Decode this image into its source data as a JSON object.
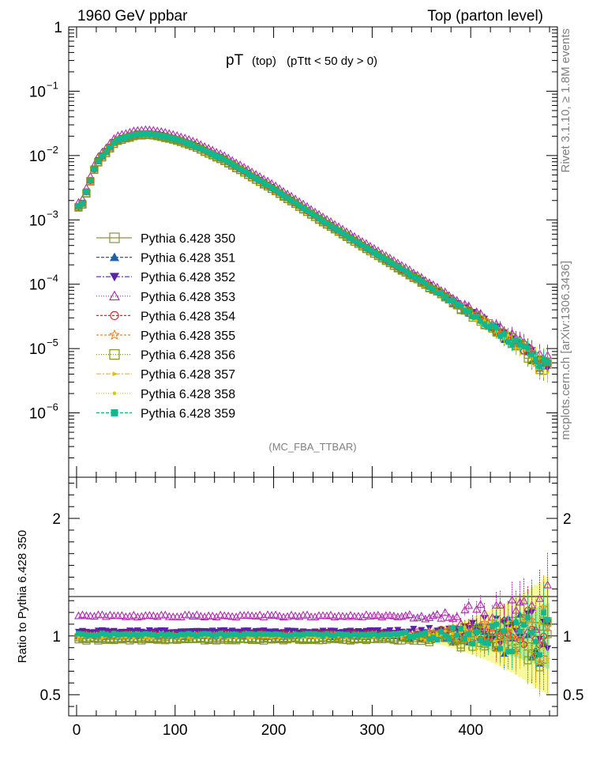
{
  "header": {
    "energy": "1960 GeV ppbar",
    "process": "Top (parton level)"
  },
  "title": {
    "main": "pT",
    "paren": "(top)",
    "cut": "(pTtt < 50 dy > 0)"
  },
  "side_label_top": "Rivet 3.1.10, ≥ 1.8M events",
  "side_label_bottom": "mcplots.cern.ch [arXiv:1306.3436]",
  "analysis_tag": "(MC_FBA_TTBAR)",
  "ratio_ylabel": "Ratio to Pythia 6.428 350",
  "chart_data": [
    {
      "type": "scatter",
      "yscale": "log",
      "xlim": [
        -8,
        488
      ],
      "ylim": [
        1e-07,
        1
      ],
      "ytick_labels": [
        "1",
        "10−1",
        "10−2",
        "10−3",
        "10−4",
        "10−5",
        "10−6"
      ],
      "xtick_labels": [
        "0",
        "100",
        "200",
        "300",
        "400"
      ],
      "x": [
        5,
        20,
        40,
        60,
        70,
        80,
        100,
        120,
        150,
        200,
        250,
        300,
        350,
        400,
        450,
        475
      ],
      "reference_values": [
        0.0016,
        0.0075,
        0.017,
        0.021,
        0.0215,
        0.021,
        0.018,
        0.014,
        0.0085,
        0.003,
        0.00095,
        0.00032,
        0.00011,
        3.5e-05,
        1.1e-05,
        5.5e-06
      ],
      "legend_position": "middle-left",
      "series": [
        {
          "name": "Pythia 6.428 350",
          "color": "#8f8f3a",
          "marker": "open-square",
          "ratio": 0.97
        },
        {
          "name": "Pythia 6.428 351",
          "color": "#1f5fae",
          "marker": "triangle-up",
          "ratio": 1.0
        },
        {
          "name": "Pythia 6.428 352",
          "color": "#5a22a8",
          "marker": "triangle-down",
          "ratio": 1.04
        },
        {
          "name": "Pythia 6.428 353",
          "color": "#b02bb0",
          "marker": "open-triangle",
          "ratio": 1.17
        },
        {
          "name": "Pythia 6.428 354",
          "color": "#dd2222",
          "marker": "open-circle",
          "ratio": 1.01
        },
        {
          "name": "Pythia 6.428 355",
          "color": "#f08020",
          "marker": "open-star",
          "ratio": 1.0
        },
        {
          "name": "Pythia 6.428 356",
          "color": "#7a9a1a",
          "marker": "open-square",
          "ratio": 0.98
        },
        {
          "name": "Pythia 6.428 357",
          "color": "#e0c000",
          "marker": "small-arrow",
          "ratio": 0.99
        },
        {
          "name": "Pythia 6.428 358",
          "color": "#c8d020",
          "marker": "dot",
          "ratio": 1.0
        },
        {
          "name": "Pythia 6.428 359",
          "color": "#10b890",
          "marker": "filled-square",
          "ratio": 1.01
        }
      ]
    },
    {
      "type": "scatter",
      "ylabel": "Ratio to Pythia 6.428 350",
      "ylim": [
        0.32,
        2.35
      ],
      "ytick_labels": [
        "0.5",
        "1",
        "2"
      ],
      "xtick_labels": [
        "0",
        "100",
        "200",
        "300",
        "400"
      ]
    }
  ]
}
